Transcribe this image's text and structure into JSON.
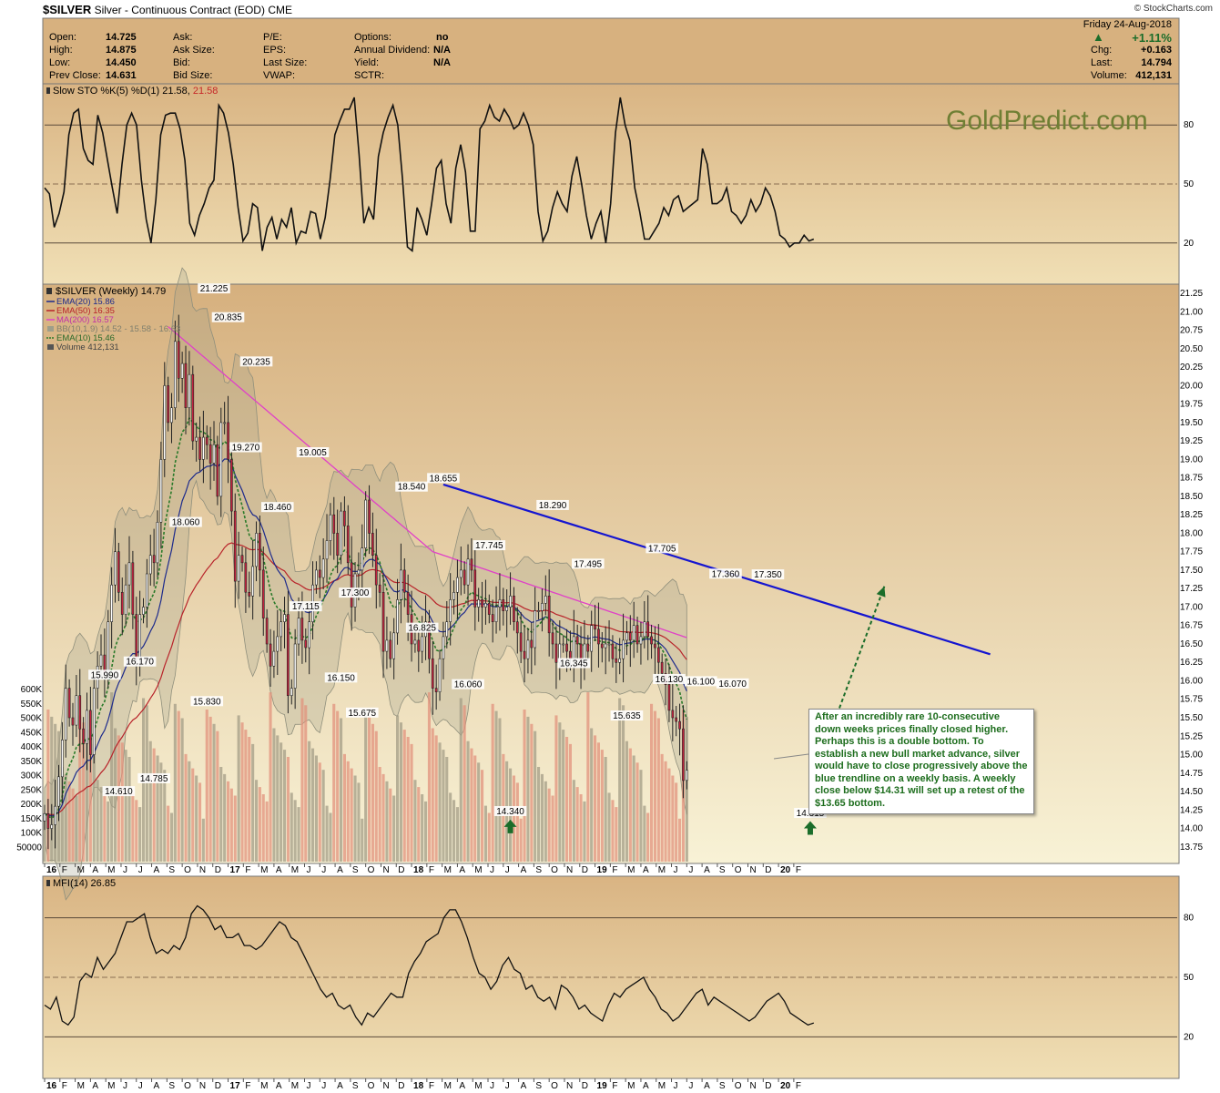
{
  "header": {
    "symbol": "$SILVER",
    "description": "Silver - Continuous Contract (EOD)",
    "exchange": "CME",
    "date": "Friday  24-Aug-2018",
    "credit": "© StockCharts.com",
    "watermark": "GoldPredict.com",
    "quote": [
      {
        "label": "Open:",
        "value": "14.725"
      },
      {
        "label": "High:",
        "value": "14.875"
      },
      {
        "label": "Low:",
        "value": "14.450"
      },
      {
        "label": "Prev Close:",
        "value": "14.631"
      }
    ],
    "col2": [
      "Ask:",
      "Ask Size:",
      "Bid:",
      "Bid Size:"
    ],
    "col3": [
      "P/E:",
      "EPS:",
      "Last Size:",
      "VWAP:"
    ],
    "col4": [
      {
        "label": "Options:",
        "value": "no"
      },
      {
        "label": "Annual Dividend:",
        "value": "N/A"
      },
      {
        "label": "Yield:",
        "value": "N/A"
      },
      {
        "label": "SCTR:",
        "value": ""
      }
    ],
    "change_pct": "+1.11%",
    "right": [
      {
        "label": "Chg:",
        "value": "+0.163"
      },
      {
        "label": "Last:",
        "value": "14.794"
      },
      {
        "label": "Volume:",
        "value": "412,131"
      }
    ]
  },
  "colors": {
    "panel_bg_top": "#d6b07e",
    "panel_bg_bottom": "#f8f2d6",
    "up_candle": "#ffffff",
    "down_candle": "#c2243f",
    "ema20": "#1c2a8c",
    "ema50": "#b8232a",
    "ma200": "#e040c8",
    "ema10": "#2a7a2a",
    "bb_fill": "#9e9e8a",
    "trendline": "#1515d0",
    "arrow": "#1b6d2a"
  },
  "chart_data": [
    {
      "type": "line",
      "title": "Slow STO %K(5) %D(1) 21.58, 21.58",
      "legend": {
        "text": "Slow STO %K(5) %D(1) 21.58,",
        "value": "21.58"
      },
      "ylim": [
        0,
        100
      ],
      "ticks": [
        20,
        50,
        80
      ],
      "values": [
        48,
        45,
        28,
        35,
        46,
        75,
        86,
        88,
        68,
        62,
        60,
        85,
        76,
        62,
        48,
        35,
        60,
        80,
        86,
        80,
        52,
        32,
        20,
        42,
        75,
        85,
        86,
        86,
        78,
        62,
        30,
        24,
        34,
        40,
        48,
        52,
        90,
        86,
        76,
        60,
        38,
        21,
        25,
        40,
        38,
        16,
        28,
        33,
        22,
        32,
        28,
        38,
        20,
        26,
        25,
        36,
        35,
        22,
        33,
        52,
        75,
        82,
        88,
        88,
        94,
        65,
        30,
        38,
        32,
        64,
        76,
        84,
        90,
        80,
        52,
        18,
        16,
        38,
        32,
        24,
        40,
        58,
        62,
        40,
        30,
        58,
        70,
        56,
        26,
        26,
        78,
        82,
        90,
        84,
        82,
        88,
        84,
        78,
        80,
        86,
        80,
        70,
        36,
        21,
        26,
        38,
        46,
        40,
        36,
        54,
        64,
        50,
        34,
        22,
        30,
        36,
        20,
        40,
        76,
        94,
        80,
        72,
        48,
        36,
        22,
        22,
        26,
        30,
        38,
        34,
        42,
        44,
        36,
        38,
        40,
        42,
        68,
        60,
        40,
        40,
        42,
        48,
        36,
        34,
        30,
        34,
        42,
        36,
        40,
        48,
        44,
        36,
        24,
        22,
        18,
        20,
        20,
        24,
        21,
        22
      ]
    },
    {
      "type": "candlestick",
      "title": "$SILVER (Weekly) 14.79",
      "legend": [
        {
          "label": "EMA(20) 15.86",
          "color": "#1c2a8c",
          "style": "line"
        },
        {
          "label": "EMA(50) 16.35",
          "color": "#b8232a",
          "style": "line"
        },
        {
          "label": "MA(200) 16.57",
          "color": "#e040c8",
          "style": "line"
        },
        {
          "label": "BB(10,1.9) 14.52 - 15.58 - 16.63",
          "color": "#9e9e8a",
          "style": "box"
        },
        {
          "label": "EMA(10) 15.46",
          "color": "#2a7a2a",
          "style": "dash"
        },
        {
          "label": "Volume 412,131",
          "color": "#555555",
          "style": "bars"
        }
      ],
      "ylim": [
        13.55,
        21.35
      ],
      "y_ticks": [
        13.75,
        14.0,
        14.25,
        14.5,
        14.75,
        15.0,
        15.25,
        15.5,
        15.75,
        16.0,
        16.25,
        16.5,
        16.75,
        17.0,
        17.25,
        17.5,
        17.75,
        18.0,
        18.25,
        18.5,
        18.75,
        19.0,
        19.25,
        19.5,
        19.75,
        20.0,
        20.25,
        20.5,
        20.75,
        21.0,
        21.25
      ],
      "vol_ticks": [
        "600K",
        "550K",
        "500K",
        "450K",
        "400K",
        "350K",
        "300K",
        "250K",
        "200K",
        "150K",
        "100K",
        "50000"
      ],
      "volume_max": 600000,
      "x_labels": [
        "16",
        "F",
        "M",
        "A",
        "M",
        "J",
        "J",
        "A",
        "S",
        "O",
        "N",
        "D",
        "17",
        "F",
        "M",
        "A",
        "M",
        "J",
        "J",
        "A",
        "S",
        "O",
        "N",
        "D",
        "18",
        "F",
        "M",
        "A",
        "M",
        "J",
        "J",
        "A",
        "S",
        "O",
        "N",
        "D",
        "19",
        "F",
        "M",
        "A",
        "M",
        "J",
        "J",
        "A",
        "S",
        "O",
        "N",
        "D",
        "20",
        "F"
      ],
      "close": [
        14.2,
        14.0,
        14.05,
        14.3,
        14.7,
        15.2,
        15.9,
        15.5,
        15.4,
        15.8,
        15.35,
        15.15,
        15.6,
        15.0,
        15.9,
        16.2,
        16.35,
        16.1,
        16.8,
        17.3,
        17.75,
        17.2,
        16.9,
        17.3,
        17.6,
        16.9,
        16.3,
        16.9,
        17.0,
        17.45,
        17.7,
        17.6,
        18.15,
        19.0,
        20.0,
        19.5,
        19.7,
        20.6,
        20.1,
        20.3,
        19.7,
        20.15,
        19.25,
        19.3,
        19.0,
        19.3,
        19.2,
        18.95,
        19.2,
        18.5,
        19.5,
        19.5,
        19.0,
        18.3,
        17.35,
        17.7,
        17.6,
        17.2,
        17.15,
        17.55,
        18.0,
        17.5,
        16.85,
        16.5,
        16.2,
        16.4,
        16.6,
        16.8,
        16.9,
        15.8,
        15.9,
        16.5,
        16.85,
        16.55,
        16.45,
        16.8,
        17.3,
        17.5,
        17.4,
        17.65,
        17.9,
        18.25,
        18.0,
        17.7,
        18.3,
        18.1,
        17.6,
        17.0,
        17.45,
        17.5,
        17.8,
        18.45,
        18.0,
        17.7,
        17.3,
        17.2,
        16.4,
        16.55,
        16.3,
        16.65,
        17.1,
        17.5,
        17.2,
        16.9,
        16.5,
        16.55,
        16.4,
        16.6,
        16.8,
        16.3,
        15.9,
        15.85,
        16.3,
        16.6,
        16.8,
        17.1,
        17.2,
        17.4,
        17.5,
        17.3,
        17.65,
        17.5,
        17.0,
        17.1,
        17.0,
        17.05,
        16.9,
        16.8,
        17.0,
        17.1,
        16.95,
        17.0,
        17.15,
        16.8,
        16.65,
        16.4,
        16.3,
        16.55,
        16.45,
        16.95,
        16.95,
        17.05,
        17.15,
        16.65,
        16.5,
        16.25,
        16.5,
        16.5,
        16.4,
        16.3,
        16.6,
        16.5,
        16.25,
        16.5,
        16.4,
        16.75,
        16.7,
        16.5,
        16.45,
        16.5,
        16.5,
        16.3,
        16.25,
        16.3,
        16.55,
        16.65,
        16.55,
        16.75,
        16.5,
        16.6,
        16.8,
        16.6,
        16.5,
        16.45,
        16.25,
        16.1,
        15.95,
        15.6,
        15.5,
        15.45,
        15.35,
        14.65,
        14.79
      ],
      "high_labels": [
        {
          "v": "15.990",
          "x": 17,
          "y": 15.99,
          "pos": "above"
        },
        {
          "v": "16.170",
          "x": 27,
          "y": 16.17,
          "pos": "above"
        },
        {
          "v": "18.060",
          "x": 40,
          "y": 18.06,
          "pos": "above"
        },
        {
          "v": "20.835",
          "x": 52,
          "y": 20.835,
          "pos": "above"
        },
        {
          "v": "20.235",
          "x": 60,
          "y": 20.235,
          "pos": "above"
        },
        {
          "v": "21.225",
          "x": 48,
          "y": 21.225,
          "pos": "above"
        },
        {
          "v": "19.005",
          "x": 76,
          "y": 19.005,
          "pos": "above"
        },
        {
          "v": "18.540",
          "x": 104,
          "y": 18.54,
          "pos": "above"
        },
        {
          "v": "18.655",
          "x": 113,
          "y": 18.655,
          "pos": "above"
        },
        {
          "v": "17.745",
          "x": 126,
          "y": 17.745,
          "pos": "above"
        },
        {
          "v": "18.290",
          "x": 144,
          "y": 18.29,
          "pos": "above"
        },
        {
          "v": "17.495",
          "x": 154,
          "y": 17.495,
          "pos": "above"
        },
        {
          "v": "17.705",
          "x": 175,
          "y": 17.705,
          "pos": "above"
        },
        {
          "v": "17.360",
          "x": 193,
          "y": 17.36,
          "pos": "above"
        },
        {
          "v": "17.350",
          "x": 205,
          "y": 17.35,
          "pos": "above"
        }
      ],
      "low_labels": [
        {
          "v": "14.610",
          "x": 21,
          "y": 14.61,
          "pos": "below"
        },
        {
          "v": "14.785",
          "x": 31,
          "y": 14.785,
          "pos": "below"
        },
        {
          "v": "15.830",
          "x": 46,
          "y": 15.83,
          "pos": "below"
        },
        {
          "v": "19.270",
          "x": 57,
          "y": 19.27,
          "pos": "below"
        },
        {
          "v": "18.460",
          "x": 66,
          "y": 18.46,
          "pos": "below"
        },
        {
          "v": "17.115",
          "x": 74,
          "y": 17.115,
          "pos": "below"
        },
        {
          "v": "17.300",
          "x": 88,
          "y": 17.3,
          "pos": "below"
        },
        {
          "v": "16.150",
          "x": 84,
          "y": 16.15,
          "pos": "below"
        },
        {
          "v": "15.675",
          "x": 90,
          "y": 15.675,
          "pos": "below"
        },
        {
          "v": "16.825",
          "x": 107,
          "y": 16.825,
          "pos": "below"
        },
        {
          "v": "16.060",
          "x": 120,
          "y": 16.06,
          "pos": "below"
        },
        {
          "v": "14.340",
          "x": 132,
          "y": 14.34,
          "pos": "below"
        },
        {
          "v": "16.345",
          "x": 150,
          "y": 16.345,
          "pos": "below"
        },
        {
          "v": "15.635",
          "x": 165,
          "y": 15.635,
          "pos": "below"
        },
        {
          "v": "16.130",
          "x": 177,
          "y": 16.13,
          "pos": "below"
        },
        {
          "v": "16.100",
          "x": 186,
          "y": 16.1,
          "pos": "below"
        },
        {
          "v": "16.070",
          "x": 195,
          "y": 16.07,
          "pos": "below"
        },
        {
          "v": "14.315",
          "x": 217,
          "y": 14.315,
          "pos": "below"
        }
      ],
      "trendline": {
        "from": {
          "week": 113,
          "price": 18.66
        },
        "to": {
          "week": 268,
          "price": 16.36
        }
      },
      "up_arrows": [
        {
          "week": 132,
          "price": 14.02
        },
        {
          "week": 217,
          "price": 14.0
        }
      ],
      "projection_arrow": {
        "from": {
          "week": 219,
          "price": 14.82
        },
        "to": {
          "week": 238,
          "price": 17.28
        }
      },
      "annotation": "After an incredibly rare 10-consecutive down weeks prices finally closed higher. Perhaps this is a double bottom. To establish a new bull market advance, silver would have to close progressively above the blue trendline on a weekly basis. A weekly close below $14.31 will set up a retest of the $13.65 bottom."
    },
    {
      "type": "line",
      "title": "MFI(14) 26.85",
      "ylim": [
        0,
        100
      ],
      "ticks": [
        20,
        50,
        80
      ],
      "values": [
        36,
        34,
        40,
        28,
        26,
        30,
        48,
        52,
        50,
        60,
        54,
        58,
        62,
        70,
        78,
        78,
        80,
        82,
        70,
        62,
        64,
        62,
        66,
        64,
        70,
        82,
        86,
        84,
        80,
        74,
        76,
        70,
        70,
        72,
        66,
        66,
        64,
        66,
        70,
        74,
        78,
        76,
        70,
        68,
        62,
        56,
        50,
        44,
        40,
        42,
        36,
        34,
        36,
        30,
        26,
        32,
        30,
        34,
        38,
        42,
        40,
        40,
        52,
        58,
        62,
        68,
        70,
        72,
        80,
        84,
        84,
        78,
        70,
        60,
        52,
        50,
        44,
        48,
        56,
        60,
        54,
        52,
        44,
        46,
        40,
        38,
        40,
        34,
        46,
        44,
        40,
        34,
        36,
        32,
        30,
        28,
        36,
        42,
        40,
        44,
        46,
        48,
        50,
        44,
        40,
        34,
        32,
        28,
        30,
        34,
        38,
        42,
        44,
        36,
        40,
        38,
        36,
        34,
        32,
        30,
        28,
        30,
        34,
        38,
        40,
        42,
        38,
        32,
        30,
        28,
        26,
        27
      ]
    }
  ]
}
